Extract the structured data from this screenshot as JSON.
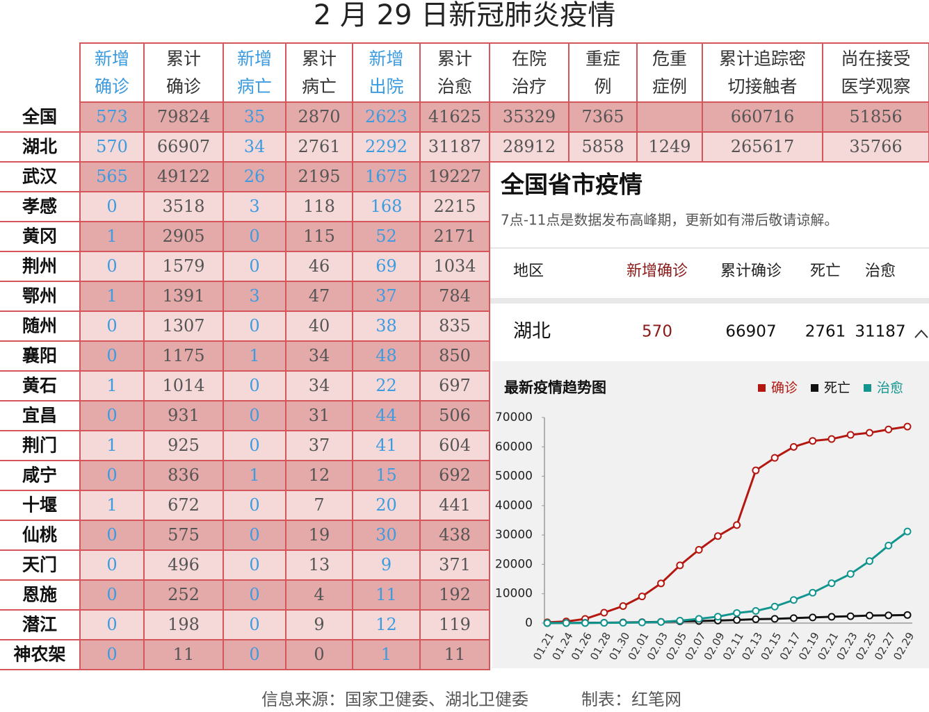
{
  "title": "2 月 29 日新冠肺炎疫情",
  "table": {
    "columns": [
      [
        "新增",
        "确诊"
      ],
      [
        "累计",
        "确诊"
      ],
      [
        "新增",
        "病亡"
      ],
      [
        "累计",
        "病亡"
      ],
      [
        "新增",
        "出院"
      ],
      [
        "累计",
        "治愈"
      ],
      [
        "在院",
        "治疗"
      ],
      [
        "重症",
        "例"
      ],
      [
        "危重",
        "症例"
      ],
      [
        "累计追踪密",
        "切接触者"
      ],
      [
        "尚在接受",
        "医学观察"
      ]
    ],
    "rows": [
      {
        "region": "全国",
        "values": [
          573,
          79824,
          35,
          2870,
          2623,
          41625,
          35329,
          7365,
          null,
          660716,
          51856
        ]
      },
      {
        "region": "湖北",
        "values": [
          570,
          66907,
          34,
          2761,
          2292,
          31187,
          28912,
          5858,
          1249,
          265617,
          35766
        ]
      },
      {
        "region": "武汉",
        "values": [
          565,
          49122,
          26,
          2195,
          1675,
          19227
        ]
      },
      {
        "region": "孝感",
        "values": [
          0,
          3518,
          3,
          118,
          168,
          2215
        ]
      },
      {
        "region": "黄冈",
        "values": [
          1,
          2905,
          0,
          115,
          52,
          2171
        ]
      },
      {
        "region": "荆州",
        "values": [
          0,
          1579,
          0,
          46,
          69,
          1034
        ]
      },
      {
        "region": "鄂州",
        "values": [
          1,
          1391,
          3,
          47,
          37,
          784
        ]
      },
      {
        "region": "随州",
        "values": [
          0,
          1307,
          0,
          40,
          38,
          835
        ]
      },
      {
        "region": "襄阳",
        "values": [
          0,
          1175,
          1,
          34,
          48,
          850
        ]
      },
      {
        "region": "黄石",
        "values": [
          1,
          1014,
          0,
          34,
          22,
          697
        ]
      },
      {
        "region": "宜昌",
        "values": [
          0,
          931,
          0,
          31,
          44,
          506
        ]
      },
      {
        "region": "荆门",
        "values": [
          1,
          925,
          0,
          37,
          41,
          604
        ]
      },
      {
        "region": "咸宁",
        "values": [
          0,
          836,
          1,
          12,
          15,
          692
        ]
      },
      {
        "region": "十堰",
        "values": [
          1,
          672,
          0,
          7,
          20,
          441
        ]
      },
      {
        "region": "仙桃",
        "values": [
          0,
          575,
          0,
          19,
          30,
          438
        ]
      },
      {
        "region": "天门",
        "values": [
          0,
          496,
          0,
          13,
          9,
          371
        ]
      },
      {
        "region": "恩施",
        "values": [
          0,
          252,
          0,
          4,
          11,
          192
        ]
      },
      {
        "region": "潜江",
        "values": [
          0,
          198,
          0,
          9,
          12,
          119
        ]
      },
      {
        "region": "神农架",
        "values": [
          0,
          11,
          0,
          0,
          1,
          11
        ]
      }
    ]
  },
  "panel": {
    "title": "全国省市疫情",
    "notice": "7点-11点是数据发布高峰期，更新如有滞后敬请谅解。",
    "headers": [
      "地区",
      "新增确诊",
      "累计确诊",
      "死亡",
      "治愈"
    ],
    "row": [
      "湖北",
      570,
      66907,
      2761,
      31187
    ]
  },
  "chart_data": {
    "type": "line",
    "title": "最新疫情趋势图",
    "categories": [
      "01.21",
      "01.24",
      "01.26",
      "01.28",
      "01.30",
      "02.01",
      "02.03",
      "02.05",
      "02.07",
      "02.09",
      "02.11",
      "02.13",
      "02.15",
      "02.17",
      "02.19",
      "02.21",
      "02.23",
      "02.25",
      "02.27",
      "02.29"
    ],
    "series": [
      {
        "name": "确诊",
        "color": "#b3170f",
        "values": [
          270,
          549,
          1423,
          3554,
          5806,
          9074,
          13522,
          19665,
          24953,
          29631,
          33366,
          51986,
          56249,
          59989,
          62031,
          62662,
          64084,
          64786,
          65914,
          66907
        ]
      },
      {
        "name": "死亡",
        "color": "#111111",
        "values": [
          6,
          24,
          76,
          125,
          204,
          294,
          414,
          618,
          699,
          871,
          1068,
          1318,
          1457,
          1696,
          1921,
          2144,
          2346,
          2563,
          2641,
          2761
        ]
      },
      {
        "name": "治愈",
        "color": "#13958f",
        "values": [
          25,
          32,
          44,
          80,
          116,
          215,
          396,
          817,
          1439,
          2193,
          3441,
          4131,
          5623,
          7862,
          10337,
          13557,
          16738,
          21113,
          26403,
          31187
        ]
      }
    ],
    "ylim": [
      0,
      70000
    ],
    "yticks": [
      0,
      10000,
      20000,
      30000,
      40000,
      50000,
      60000,
      70000
    ]
  },
  "footer": {
    "source": "信息来源：国家卫健委、湖北卫健委",
    "maker": "制表：红笔网"
  }
}
